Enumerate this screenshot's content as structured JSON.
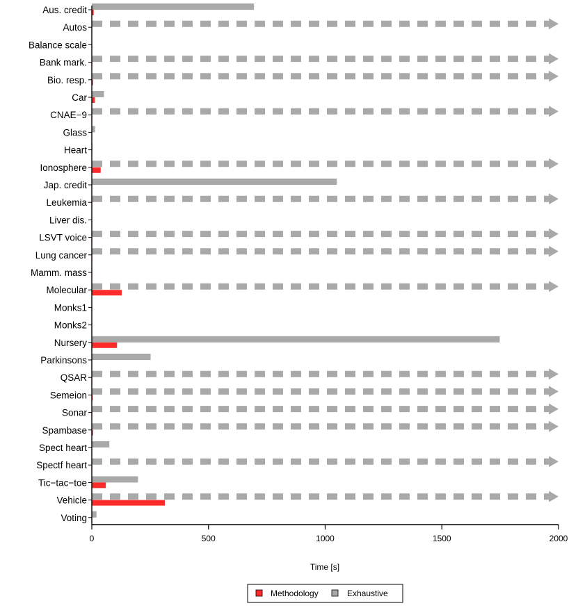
{
  "chart_data": {
    "type": "bar",
    "orientation": "horizontal",
    "xlabel": "Time [s]",
    "xlim": [
      0,
      2000
    ],
    "xticks": [
      "0",
      "500",
      "1000",
      "1500",
      "2000"
    ],
    "categories": [
      "Aus. credit",
      "Autos",
      "Balance scale",
      "Bank mark.",
      "Bio. resp.",
      "Car",
      "CNAE−9",
      "Glass",
      "Heart",
      "Ionosphere",
      "Jap. credit",
      "Leukemia",
      "Liver dis.",
      "LSVT voice",
      "Lung cancer",
      "Mamm. mass",
      "Molecular",
      "Monks1",
      "Monks2",
      "Nursery",
      "Parkinsons",
      "QSAR",
      "Semeion",
      "Sonar",
      "Spambase",
      "Spect heart",
      "Spectf heart",
      "Tic−tac−toe",
      "Vehicle",
      "Voting"
    ],
    "series": [
      {
        "name": "Methodology",
        "values": [
          8,
          1,
          0.5,
          2,
          5,
          13,
          2,
          1,
          1,
          38,
          1,
          2,
          0.5,
          2,
          2,
          0.5,
          128,
          0.5,
          0.5,
          108,
          1,
          2,
          4,
          2,
          5,
          1,
          2,
          60,
          313,
          1
        ]
      },
      {
        "name": "Exhaustive",
        "values": [
          695,
          null,
          0.5,
          null,
          null,
          52,
          null,
          14,
          3,
          null,
          1050,
          null,
          0.5,
          null,
          null,
          0.5,
          null,
          0.5,
          0.5,
          1748,
          252,
          null,
          null,
          null,
          null,
          75,
          null,
          198,
          null,
          20
        ]
      }
    ],
    "exceeds_limit_note": "null Exhaustive values are drawn as dashed arrows reaching beyond 2000 s",
    "legend": {
      "position": "bottom",
      "entries": [
        "Methodology",
        "Exhaustive"
      ]
    }
  },
  "colors": {
    "methodology": "#ff2a2a",
    "exhaustive": "#a9a9a9",
    "axis": "#000000"
  }
}
